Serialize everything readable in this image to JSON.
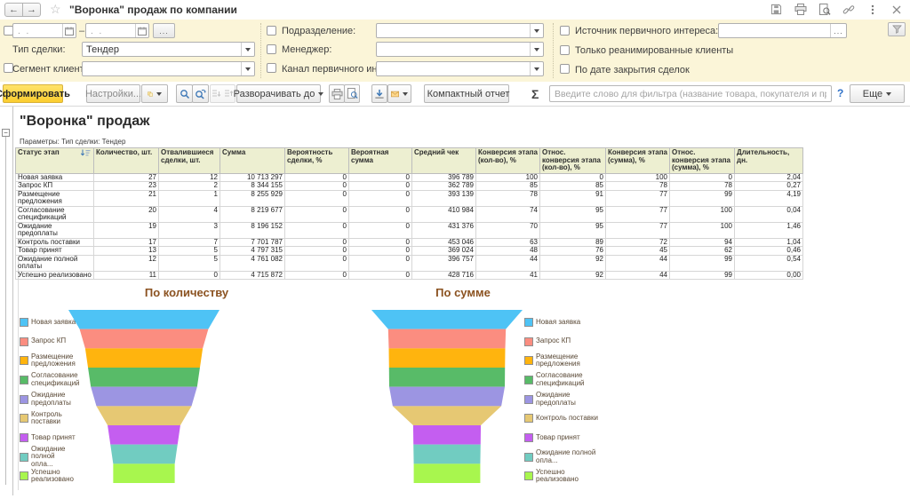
{
  "window": {
    "title": "\"Воронка\" продаж по компании",
    "back": "←",
    "forward": "→",
    "star": "☆"
  },
  "filters": {
    "date_from_placeholder": ". .",
    "date_to_placeholder": ". .",
    "dash": "–",
    "more_dots": "...",
    "deal_type_label": "Тип сделки:",
    "deal_type_value": "Тендер",
    "segment_label": "Сегмент клиентов:",
    "department_label": "Подразделение:",
    "manager_label": "Менеджер:",
    "channel_label": "Канал первичного интереса:",
    "source_label": "Источник первичного интереса:",
    "reanimated_label": "Только реанимированные клиенты",
    "by_close_date_label": "По дате закрытия сделок"
  },
  "toolbar": {
    "generate": "Сформировать",
    "settings": "Настройки...",
    "expand_to": "Разворачивать до",
    "compact_report": "Компактный отчет",
    "sigma": "Σ",
    "filter_placeholder": "Введите слово для фильтра (название товара, покупателя и пр.)",
    "help": "?",
    "more": "Еще"
  },
  "report": {
    "title": "\"Воронка\" продаж",
    "params": "Параметры: Тип сделки: Тендер",
    "columns": [
      "Статус этап",
      "Количество, шт.",
      "Отвалившиеся сделки, шт.",
      "Сумма",
      "Вероятность сделки, %",
      "Вероятная сумма",
      "Средний чек",
      "Конверсия этапа (кол-во), %",
      "Относ. конверсия этапа (кол-во), %",
      "Конверсия этапа (сумма), %",
      "Относ. конверсия этапа (сумма), %",
      "Длительность, дн."
    ],
    "rows": [
      [
        "Новая заявка",
        "27",
        "12",
        "10 713 297",
        "0",
        "0",
        "396 789",
        "100",
        "0",
        "100",
        "0",
        "2,04"
      ],
      [
        "Запрос КП",
        "23",
        "2",
        "8 344 155",
        "0",
        "0",
        "362 789",
        "85",
        "85",
        "78",
        "78",
        "0,27"
      ],
      [
        "Размещение предложения",
        "21",
        "1",
        "8 255 929",
        "0",
        "0",
        "393 139",
        "78",
        "91",
        "77",
        "99",
        "4,19"
      ],
      [
        "Согласование спецификаций",
        "20",
        "4",
        "8 219 677",
        "0",
        "0",
        "410 984",
        "74",
        "95",
        "77",
        "100",
        "0,04"
      ],
      [
        "Ожидание предоплаты",
        "19",
        "3",
        "8 196 152",
        "0",
        "0",
        "431 376",
        "70",
        "95",
        "77",
        "100",
        "1,46"
      ],
      [
        "Контроль поставки",
        "17",
        "7",
        "7 701 787",
        "0",
        "0",
        "453 046",
        "63",
        "89",
        "72",
        "94",
        "1,04"
      ],
      [
        "Товар принят",
        "13",
        "5",
        "4 797 315",
        "0",
        "0",
        "369 024",
        "48",
        "76",
        "45",
        "62",
        "0,46"
      ],
      [
        "Ожидание полной оплаты",
        "12",
        "5",
        "4 761 082",
        "0",
        "0",
        "396 757",
        "44",
        "92",
        "44",
        "99",
        "0,54"
      ],
      [
        "Успешно реализовано",
        "11",
        "0",
        "4 715 872",
        "0",
        "0",
        "428 716",
        "41",
        "92",
        "44",
        "99",
        "0,00"
      ]
    ]
  },
  "chart_data": [
    {
      "type": "funnel",
      "title": "По количеству",
      "legend_position": "left",
      "categories": [
        "Новая заявка",
        "Запрос КП",
        "Размещение предложения",
        "Согласование спецификаций",
        "Ожидание предоплаты",
        "Контроль поставки",
        "Товар принят",
        "Ожидание полной оплаты",
        "Успешно реализовано"
      ],
      "legend_labels": [
        "Новая заявка",
        "Запрос КП",
        "Размещение предложения",
        "Согласование спецификаций",
        "Ожидание предоплаты",
        "Контроль поставки",
        "Товар принят",
        "Ожидание полной опла...",
        "Успешно реализовано"
      ],
      "values": [
        27,
        23,
        21,
        20,
        19,
        17,
        13,
        12,
        11
      ],
      "colors": [
        "#4EC3F5",
        "#FB8D80",
        "#FFB40E",
        "#58BB68",
        "#9C95E2",
        "#E6C873",
        "#C45EF0",
        "#71CCC1",
        "#A8F64E"
      ]
    },
    {
      "type": "funnel",
      "title": "По сумме",
      "legend_position": "right",
      "categories": [
        "Новая заявка",
        "Запрос КП",
        "Размещение предложения",
        "Согласование спецификаций",
        "Ожидание предоплаты",
        "Контроль поставки",
        "Товар принят",
        "Ожидание полной оплаты",
        "Успешно реализовано"
      ],
      "legend_labels": [
        "Новая заявка",
        "Запрос КП",
        "Размещение предложения",
        "Согласование спецификаций",
        "Ожидание предоплаты",
        "Контроль поставки",
        "Товар принят",
        "Ожидание полной опла...",
        "Успешно реализовано"
      ],
      "values": [
        10713297,
        8344155,
        8255929,
        8219677,
        8196152,
        7701787,
        4797315,
        4761082,
        4715872
      ],
      "colors": [
        "#4EC3F5",
        "#FB8D80",
        "#FFB40E",
        "#58BB68",
        "#9C95E2",
        "#E6C873",
        "#C45EF0",
        "#71CCC1",
        "#A8F64E"
      ]
    }
  ]
}
